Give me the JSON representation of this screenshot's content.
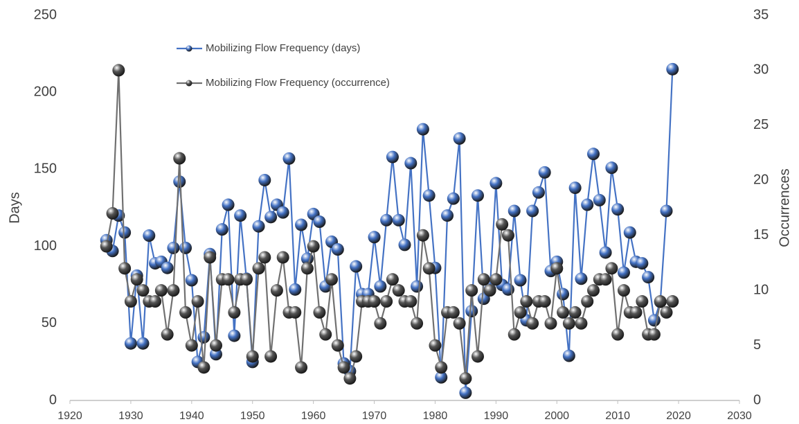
{
  "chart_data": {
    "type": "line",
    "x": [
      1926,
      1927,
      1928,
      1929,
      1930,
      1931,
      1932,
      1933,
      1934,
      1935,
      1936,
      1937,
      1938,
      1939,
      1940,
      1941,
      1942,
      1943,
      1944,
      1945,
      1946,
      1947,
      1948,
      1949,
      1950,
      1951,
      1952,
      1953,
      1954,
      1955,
      1956,
      1957,
      1958,
      1959,
      1960,
      1961,
      1962,
      1963,
      1964,
      1965,
      1966,
      1967,
      1968,
      1969,
      1970,
      1971,
      1972,
      1973,
      1974,
      1975,
      1976,
      1977,
      1978,
      1979,
      1980,
      1981,
      1982,
      1983,
      1984,
      1985,
      1986,
      1987,
      1988,
      1989,
      1990,
      1991,
      1992,
      1993,
      1994,
      1995,
      1996,
      1997,
      1998,
      1999,
      2000,
      2001,
      2002,
      2003,
      2004,
      2005,
      2006,
      2007,
      2008,
      2009,
      2010,
      2011,
      2012,
      2013,
      2014,
      2015,
      2016,
      2017,
      2018,
      2019
    ],
    "series": [
      {
        "name": "Mobilizing Flow Frequency (days)",
        "color": "#4472c4",
        "values": [
          104,
          97,
          120,
          109,
          37,
          81,
          37,
          107,
          89,
          90,
          86,
          99,
          142,
          99,
          78,
          25,
          41,
          95,
          30,
          111,
          127,
          42,
          120,
          79,
          25,
          113,
          143,
          119,
          127,
          122,
          157,
          72,
          114,
          92,
          121,
          116,
          74,
          103,
          98,
          24,
          19,
          87,
          69,
          69,
          106,
          74,
          117,
          158,
          117,
          101,
          154,
          74,
          176,
          133,
          86,
          15,
          120,
          131,
          170,
          5,
          58,
          133,
          66,
          72,
          141,
          75,
          72,
          123,
          78,
          52,
          123,
          135,
          148,
          84,
          90,
          69,
          29,
          138,
          79,
          127,
          160,
          130,
          96,
          151,
          124,
          83,
          109,
          90,
          89,
          80,
          52,
          64,
          123,
          215
        ]
      },
      {
        "name": "Mobilizing Flow Frequency (occurrence)",
        "color": "#707070",
        "axis": "y2",
        "values": [
          14,
          17,
          30,
          12,
          9,
          11,
          10,
          9,
          9,
          10,
          6,
          10,
          22,
          8,
          5,
          9,
          3,
          13,
          5,
          11,
          11,
          8,
          11,
          11,
          4,
          12,
          13,
          4,
          10,
          13,
          8,
          8,
          3,
          12,
          14,
          8,
          6,
          11,
          5,
          3,
          2,
          4,
          9,
          9,
          9,
          7,
          9,
          11,
          10,
          9,
          9,
          7,
          15,
          12,
          5,
          3,
          8,
          8,
          7,
          2,
          10,
          4,
          11,
          10,
          11,
          16,
          15,
          6,
          8,
          9,
          7,
          9,
          9,
          7,
          12,
          8,
          7,
          8,
          7,
          9,
          10,
          11,
          11,
          12,
          6,
          10,
          8,
          8,
          9,
          6,
          6,
          9,
          8,
          9
        ]
      }
    ],
    "y_label": "Days",
    "y2_label": "Occurrences",
    "xlim": [
      1920,
      2030
    ],
    "xticks": [
      1920,
      1930,
      1940,
      1950,
      1960,
      1970,
      1980,
      1990,
      2000,
      2010,
      2020,
      2030
    ],
    "ylim": [
      0,
      250
    ],
    "yticks": [
      0,
      50,
      100,
      150,
      200,
      250
    ],
    "y2lim": [
      0,
      35
    ],
    "y2ticks": [
      0,
      5,
      10,
      15,
      20,
      25,
      30,
      35
    ],
    "grid": false
  }
}
